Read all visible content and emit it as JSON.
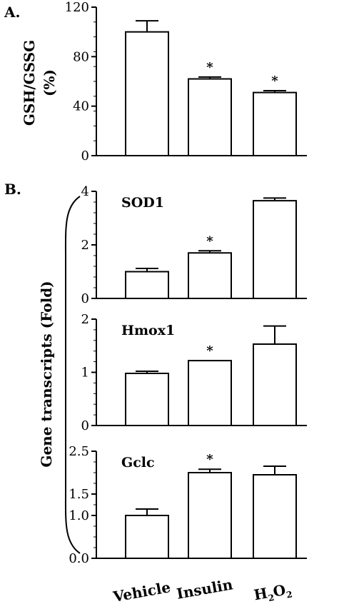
{
  "chart_data": [
    {
      "id": "A",
      "type": "bar",
      "panel_label": "A.",
      "ylabel_line1": "GSH/GSSG",
      "ylabel_line2": "(%)",
      "categories": [
        "Vehicle",
        "Insulin",
        "H2O2"
      ],
      "values": [
        100,
        62,
        51
      ],
      "errors": [
        9,
        1.5,
        1.5
      ],
      "significant": [
        false,
        true,
        true
      ],
      "star_symbol": "*",
      "ylim": [
        0,
        120
      ],
      "ticks": [
        0,
        40,
        80,
        120
      ],
      "tick_labels": [
        "0",
        "40",
        "80",
        "120"
      ],
      "gene": ""
    },
    {
      "id": "B1",
      "type": "bar",
      "panel_label": "B.",
      "gene": "SOD1",
      "categories": [
        "Vehicle",
        "Insulin",
        "H2O2"
      ],
      "values": [
        1.0,
        1.7,
        3.65
      ],
      "errors": [
        0.12,
        0.08,
        0.1
      ],
      "significant": [
        false,
        true,
        false
      ],
      "star_symbol": "*",
      "ylim": [
        0,
        4
      ],
      "ticks": [
        0,
        2,
        4
      ],
      "tick_labels": [
        "0",
        "2",
        "4"
      ]
    },
    {
      "id": "B2",
      "type": "bar",
      "gene": "Hmox1",
      "categories": [
        "Vehicle",
        "Insulin",
        "H2O2"
      ],
      "values": [
        0.98,
        1.22,
        1.53
      ],
      "errors": [
        0.04,
        0.0,
        0.34
      ],
      "significant": [
        false,
        true,
        false
      ],
      "star_symbol": "*",
      "ylim": [
        0,
        2
      ],
      "ticks": [
        0,
        1,
        2
      ],
      "tick_labels": [
        "0",
        "1",
        "2"
      ]
    },
    {
      "id": "B3",
      "type": "bar",
      "gene": "Gclc",
      "categories": [
        "Vehicle",
        "Insulin",
        "H2O2"
      ],
      "values": [
        1.0,
        2.0,
        1.95
      ],
      "errors": [
        0.15,
        0.08,
        0.2
      ],
      "significant": [
        false,
        true,
        false
      ],
      "star_symbol": "*",
      "ylim": [
        0,
        2.5
      ],
      "ticks": [
        0,
        1.0,
        1.5,
        2.5
      ],
      "tick_labels": [
        "0.0",
        "1.0",
        "1.5",
        "2.5"
      ]
    }
  ],
  "shared_ylabel": "Gene transcripts (Fold)",
  "x_categories": [
    "Vehicle",
    "Insulin",
    "H2O2"
  ],
  "h2o2_label": {
    "h": "H",
    "sub1": "2",
    "o": "O",
    "sub2": "2"
  },
  "bar_fill": "#ffffff",
  "stroke_color": "#000000"
}
